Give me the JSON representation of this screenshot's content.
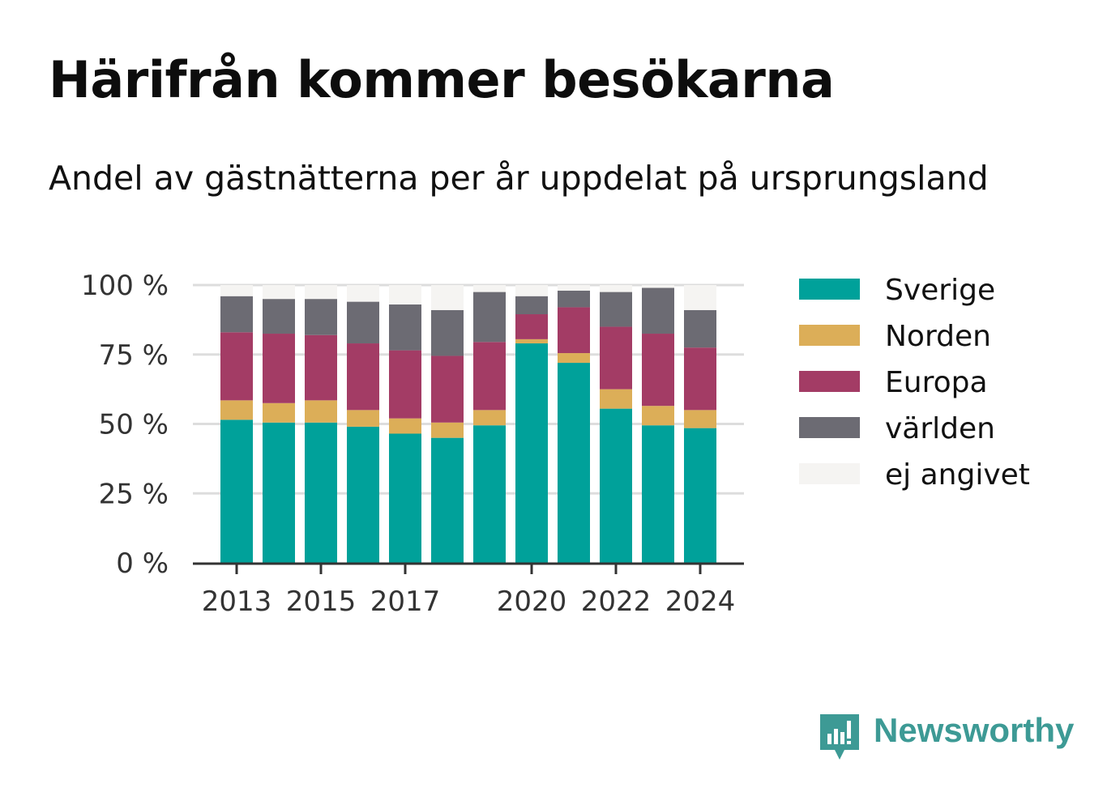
{
  "header": {
    "title": "Härifrån kommer besökarna",
    "subtitle": "Andel av gästnätterna per år uppdelat på ursprungsland"
  },
  "brand": {
    "name": "Newsworthy",
    "icon": "newsworthy-logo-icon",
    "color": "#3d9a95"
  },
  "chart_data": {
    "type": "bar",
    "stacked": true,
    "categories": [
      "2013",
      "2014",
      "2015",
      "2016",
      "2017",
      "2018",
      "2019",
      "2020",
      "2021",
      "2022",
      "2023",
      "2024"
    ],
    "x_tick_labels": [
      "2013",
      "2015",
      "2017",
      "2020",
      "2022",
      "2024"
    ],
    "y_ticks": [
      0,
      25,
      50,
      75,
      100
    ],
    "y_tick_labels": [
      "0 %",
      "25 %",
      "50 %",
      "75 %",
      "100 %"
    ],
    "ylim": [
      0,
      100
    ],
    "grid": true,
    "legend_position": "right",
    "series": [
      {
        "name": "Sverige",
        "color": "#00a19a",
        "values": [
          51.5,
          50.5,
          50.5,
          49,
          46.5,
          45,
          49.5,
          79,
          72,
          55.5,
          49.5,
          48.5
        ]
      },
      {
        "name": "Norden",
        "color": "#dcae58",
        "values": [
          7,
          7,
          8,
          6,
          5.5,
          5.5,
          5.5,
          1.5,
          3.5,
          7,
          7,
          6.5
        ]
      },
      {
        "name": "Europa",
        "color": "#a33c65",
        "values": [
          24.5,
          25,
          23.5,
          24,
          24.5,
          24,
          24.5,
          9,
          16.5,
          22.5,
          26,
          22.5
        ]
      },
      {
        "name": "världen",
        "color": "#6c6b73",
        "values": [
          13,
          12.5,
          13,
          15,
          16.5,
          16.5,
          18,
          6.5,
          6,
          12.5,
          16.5,
          13.5
        ]
      },
      {
        "name": "ej angivet",
        "color": "#f5f4f2",
        "values": [
          4,
          5,
          5,
          6,
          7,
          9,
          2.5,
          4,
          2,
          2.5,
          1,
          9
        ]
      }
    ]
  }
}
